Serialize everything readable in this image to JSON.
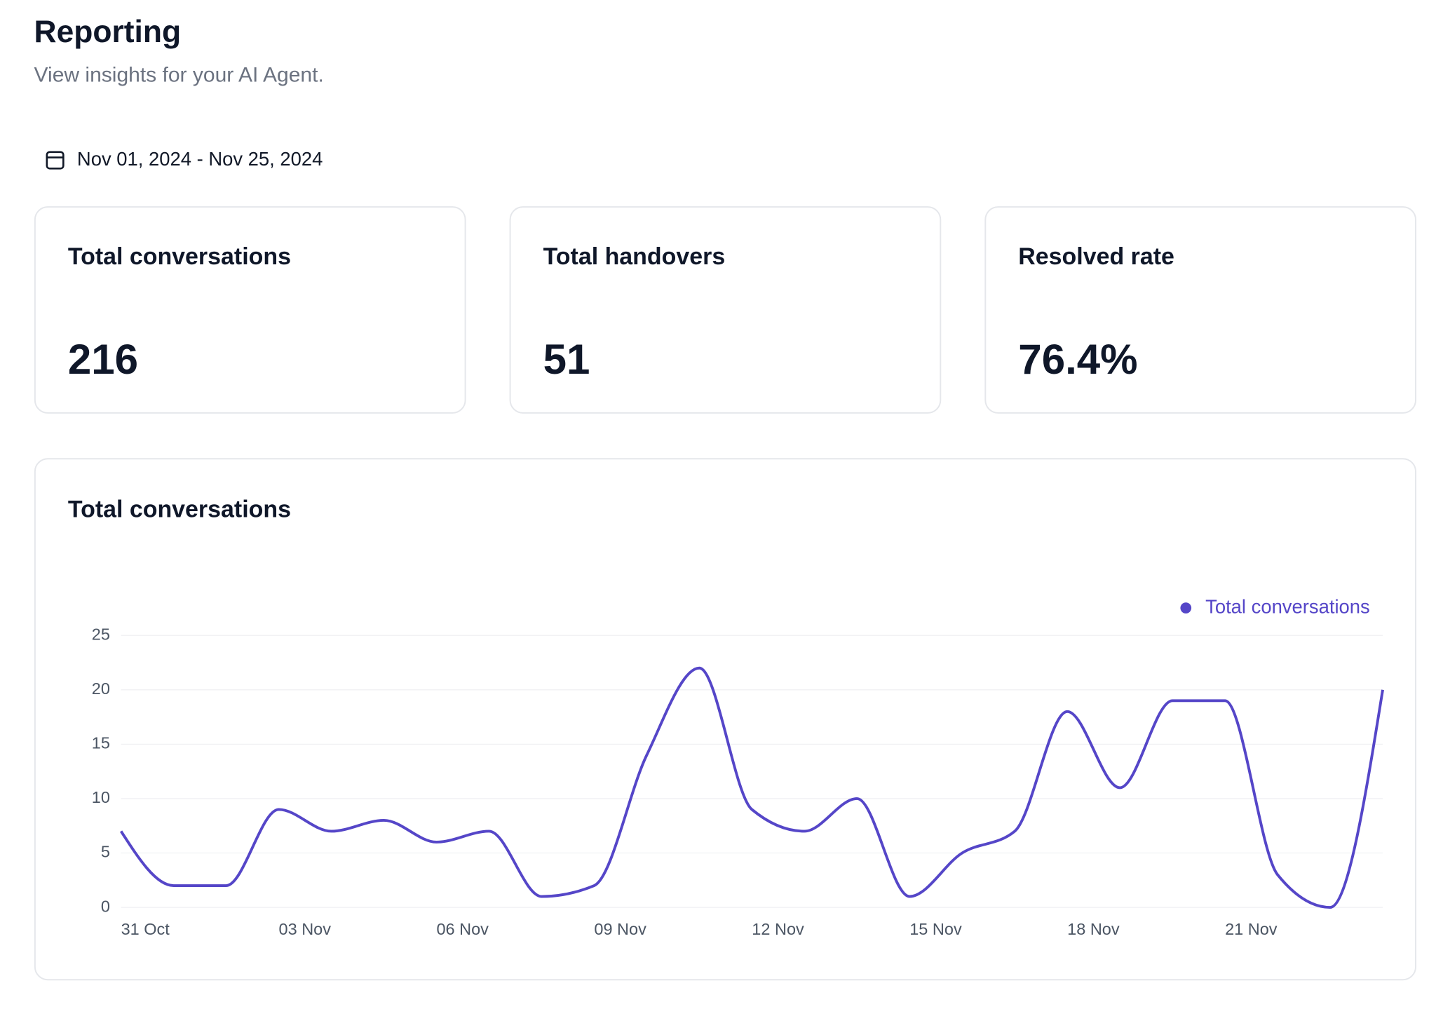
{
  "header": {
    "title": "Reporting",
    "subtitle": "View insights for your AI Agent."
  },
  "date_range": "Nov 01, 2024 - Nov 25, 2024",
  "stats": [
    {
      "label": "Total conversations",
      "value": "216"
    },
    {
      "label": "Total handovers",
      "value": "51"
    },
    {
      "label": "Resolved rate",
      "value": "76.4%"
    }
  ],
  "chart_data": {
    "type": "line",
    "title": "Total conversations",
    "categories": [
      "31 Oct",
      null,
      null,
      "03 Nov",
      null,
      null,
      "06 Nov",
      null,
      null,
      "09 Nov",
      null,
      null,
      "12 Nov",
      null,
      null,
      "15 Nov",
      null,
      null,
      "18 Nov",
      null,
      null,
      "21 Nov",
      null,
      null,
      null
    ],
    "series": [
      {
        "name": "Total conversations",
        "color": "#5546c8",
        "values": [
          7,
          2,
          2,
          9,
          7,
          8,
          6,
          7,
          1,
          2,
          14,
          22,
          9,
          7,
          10,
          1,
          5,
          7,
          18,
          11,
          19,
          19,
          3,
          0,
          20
        ]
      }
    ],
    "ylim": [
      0,
      25
    ],
    "yticks": [
      0,
      5,
      10,
      15,
      20,
      25
    ],
    "grid": true,
    "legend": "top-right"
  }
}
